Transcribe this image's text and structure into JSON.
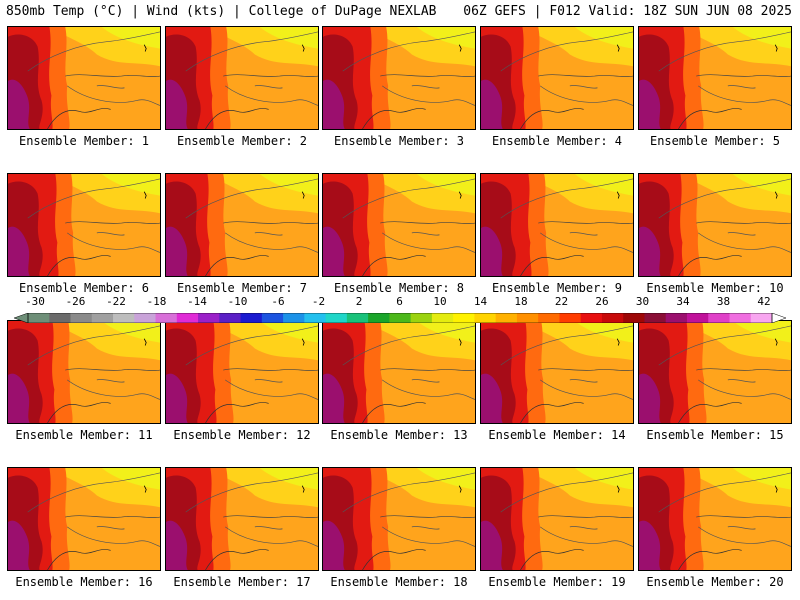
{
  "header": {
    "left_title": "850mb Temp (°C) | Wind (kts) | College of DuPage NEXLAB",
    "right_title": "06Z GEFS | F012 Valid: 18Z SUN JUN 08 2025"
  },
  "members": [
    "Ensemble Member: 1",
    "Ensemble Member: 2",
    "Ensemble Member: 3",
    "Ensemble Member: 4",
    "Ensemble Member: 5",
    "Ensemble Member: 6",
    "Ensemble Member: 7",
    "Ensemble Member: 8",
    "Ensemble Member: 9",
    "Ensemble Member: 10",
    "Ensemble Member: 11",
    "Ensemble Member: 12",
    "Ensemble Member: 13",
    "Ensemble Member: 14",
    "Ensemble Member: 15",
    "Ensemble Member: 16",
    "Ensemble Member: 17",
    "Ensemble Member: 18",
    "Ensemble Member: 19",
    "Ensemble Member: 20"
  ],
  "colorbar": {
    "ticks": [
      "-30",
      "-26",
      "-22",
      "-18",
      "-14",
      "-10",
      "-6",
      "-2",
      "2",
      "6",
      "10",
      "14",
      "18",
      "22",
      "26",
      "30",
      "34",
      "38",
      "42"
    ],
    "colors": [
      "#6e8f78",
      "#6b6b6b",
      "#8a8a8a",
      "#a0a0a0",
      "#bdbdbd",
      "#c9a3d9",
      "#d86fd8",
      "#e02bd6",
      "#9a20c8",
      "#5b1fc6",
      "#1b1bd0",
      "#1c54e0",
      "#1c92e8",
      "#23c0ee",
      "#1fd6c8",
      "#19c27a",
      "#1aa52a",
      "#4cb81a",
      "#9bd30f",
      "#e4ec10",
      "#fff200",
      "#ffd400",
      "#ffb100",
      "#ff9000",
      "#ff6a00",
      "#ff3c00",
      "#e81010",
      "#c80a0a",
      "#9e0707",
      "#8a0e36",
      "#9b0f6e",
      "#c0119a",
      "#e040c8",
      "#f06ee0",
      "#f8a6f0"
    ]
  }
}
